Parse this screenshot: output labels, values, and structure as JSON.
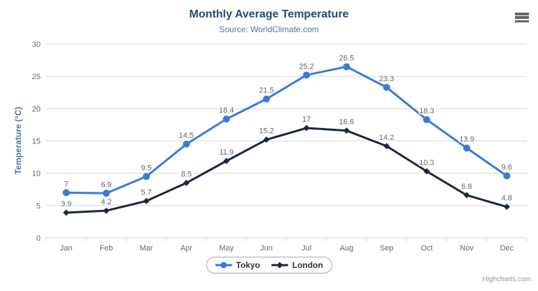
{
  "chart": {
    "title": "Monthly Average Temperature",
    "subtitle": "Source: WorldClimate.com",
    "credits": "Highcharts.com"
  },
  "icons": {
    "context_menu": "hamburger-menu-icon"
  },
  "colors": {
    "title": "#274b6d",
    "subtitle": "#4d759e",
    "axis_title": "#4d759e",
    "tick_label": "#666666",
    "data_label": "#666666",
    "gridline": "#d8d8d8",
    "axis_line": "#ccd6eb",
    "legend_text": "#333333",
    "credits": "#999999",
    "tokyo": "#3a7bd8",
    "london": "#1a2740"
  },
  "chart_data": {
    "type": "line",
    "title": "Monthly Average Temperature",
    "subtitle": "Source: WorldClimate.com",
    "categories": [
      "Jan",
      "Feb",
      "Mar",
      "Apr",
      "May",
      "Jun",
      "Jul",
      "Aug",
      "Sep",
      "Oct",
      "Nov",
      "Dec"
    ],
    "series": [
      {
        "name": "Tokyo",
        "color": "#3a7bd8",
        "marker": "circle",
        "values": [
          7,
          6.9,
          9.5,
          14.5,
          18.4,
          21.5,
          25.2,
          26.5,
          23.3,
          18.3,
          13.9,
          9.6
        ]
      },
      {
        "name": "London",
        "color": "#1a2740",
        "marker": "diamond",
        "values": [
          3.9,
          4.2,
          5.7,
          8.5,
          11.9,
          15.2,
          17,
          16.6,
          14.2,
          10.3,
          6.6,
          4.8
        ]
      }
    ],
    "xlabel": "",
    "ylabel": "Temperature (°C)",
    "ylim": [
      0,
      30
    ],
    "yticks": [
      0,
      5,
      10,
      15,
      20,
      25,
      30
    ],
    "grid": true,
    "legend_position": "bottom",
    "data_labels": true
  }
}
